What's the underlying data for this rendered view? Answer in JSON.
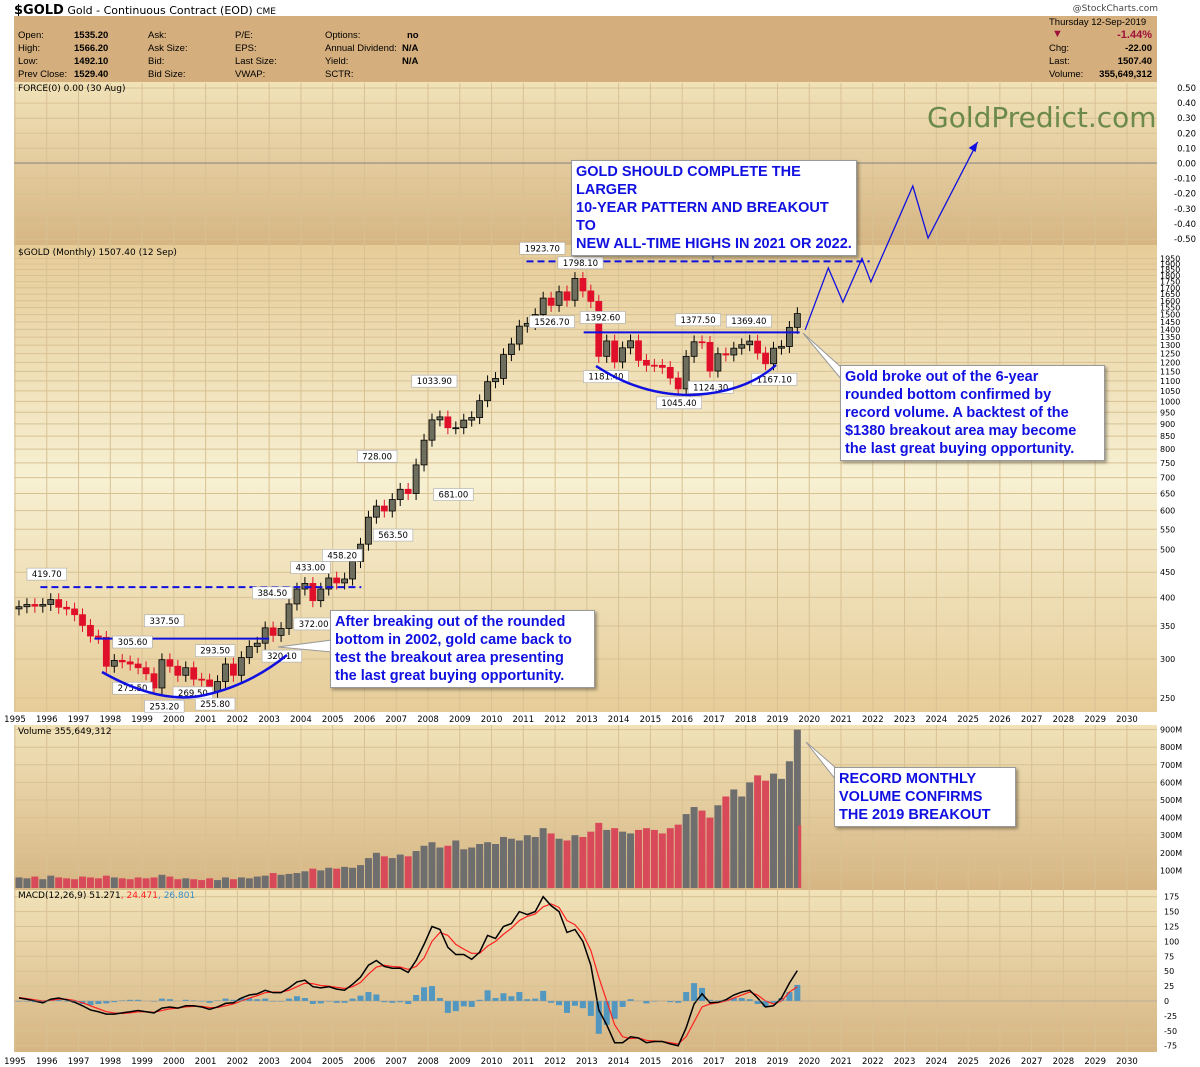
{
  "header": {
    "symbol": "$GOLD",
    "name": "Gold - Continuous Contract (EOD)",
    "exchange": "CME",
    "watermark": "@StockCharts.com",
    "fields": [
      [
        "Open:",
        "1535.20"
      ],
      [
        "High:",
        "1566.20"
      ],
      [
        "Low:",
        "1492.10"
      ],
      [
        "Prev Close:",
        "1529.40"
      ]
    ],
    "fields2": [
      "Ask:",
      "Ask Size:",
      "Bid:",
      "Bid Size:"
    ],
    "fields3": [
      "P/E:",
      "EPS:",
      "Last Size:",
      "VWAP:"
    ],
    "fields4": [
      [
        "Options:",
        "no"
      ],
      [
        "Annual Dividend:",
        "N/A"
      ],
      [
        "Yield:",
        "N/A"
      ],
      [
        "SCTR:",
        ""
      ]
    ],
    "date": "Thursday  12-Sep-2019",
    "change_pct": "-1.44%",
    "chg_label": "Chg:",
    "chg": "-22.00",
    "last_label": "Last:",
    "last": "1507.40",
    "volume_label": "Volume:",
    "volume": "355,649,312",
    "down_color": "#a0103a"
  },
  "brand": "GoldPredict.com",
  "chart_data": {
    "type": "candlestick",
    "price_scale": "log",
    "colors": {
      "up": "#000000",
      "down": "#e0102a",
      "volume_up": "#6e6e6e",
      "volume_down": "#d84a5a",
      "annotation": "#1010e0",
      "macd": "#000000",
      "signal": "#ff2020",
      "histogram": "#3a8fc8"
    },
    "force_label": "FORCE(0) 0.00 (30 Aug)",
    "force_ticks": [
      "0.50",
      "0.40",
      "0.30",
      "0.20",
      "0.10",
      "0.00",
      "-0.10",
      "-0.20",
      "-0.30",
      "-0.40",
      "-0.50"
    ],
    "price_label": "$GOLD (Monthly) 1507.40 (12 Sep)",
    "price_ticks": [
      1950,
      1900,
      1850,
      1800,
      1750,
      1700,
      1650,
      1600,
      1550,
      1500,
      1450,
      1400,
      1350,
      1300,
      1250,
      1200,
      1150,
      1100,
      1050,
      1000,
      950,
      900,
      850,
      800,
      750,
      700,
      650,
      600,
      550,
      500,
      450,
      400,
      350,
      300,
      250
    ],
    "years": [
      1995,
      1996,
      1997,
      1998,
      1999,
      2000,
      2001,
      2002,
      2003,
      2004,
      2005,
      2006,
      2007,
      2008,
      2009,
      2010,
      2011,
      2012,
      2013,
      2014,
      2015,
      2016,
      2017,
      2018,
      2019,
      2020,
      2021,
      2022,
      2023,
      2024,
      2025,
      2026,
      2027,
      2028,
      2029,
      2030
    ],
    "quarterly_close": [
      383,
      387,
      384,
      387,
      396,
      382,
      379,
      369,
      351,
      334,
      332,
      290,
      298,
      296,
      293,
      288,
      280,
      262,
      299,
      290,
      278,
      288,
      273,
      272,
      258,
      270,
      293,
      278,
      302,
      318,
      323,
      347,
      335,
      346,
      388,
      416,
      427,
      394,
      416,
      438,
      428,
      436,
      473,
      513,
      582,
      613,
      599,
      632,
      663,
      650,
      743,
      834,
      917,
      930,
      884,
      884,
      916,
      927,
      1003,
      1096,
      1113,
      1244,
      1307,
      1421,
      1439,
      1500,
      1620,
      1566,
      1668,
      1604,
      1776,
      1675,
      1595,
      1234,
      1326,
      1202,
      1284,
      1327,
      1211,
      1184,
      1183,
      1172,
      1115,
      1060,
      1234,
      1321,
      1317,
      1152,
      1249,
      1242,
      1282,
      1303,
      1325,
      1253,
      1192,
      1282,
      1292,
      1413,
      1507
    ],
    "labels": [
      [
        "419.70",
        1996.0,
        419.7,
        "up"
      ],
      [
        "337.50",
        1999.7,
        337.5,
        "up"
      ],
      [
        "305.60",
        1998.7,
        305.6,
        "up"
      ],
      [
        "275.50",
        1998.7,
        275.5,
        "down"
      ],
      [
        "253.20",
        1999.7,
        253.2,
        "down"
      ],
      [
        "269.50",
        2000.6,
        269.5,
        "down"
      ],
      [
        "293.50",
        2001.3,
        293.5,
        "up"
      ],
      [
        "255.80",
        2001.3,
        255.8,
        "down"
      ],
      [
        "384.50",
        2003.1,
        384.5,
        "up"
      ],
      [
        "320.10",
        2003.4,
        320.1,
        "down"
      ],
      [
        "433.00",
        2004.3,
        433.0,
        "up"
      ],
      [
        "372.00",
        2004.4,
        372.0,
        "down"
      ],
      [
        "458.20",
        2005.3,
        458.2,
        "up"
      ],
      [
        "728.00",
        2006.4,
        728.0,
        "up"
      ],
      [
        "563.50",
        2006.9,
        563.5,
        "down"
      ],
      [
        "1033.90",
        2008.2,
        1033.9,
        "up"
      ],
      [
        "681.00",
        2008.8,
        681.0,
        "down"
      ],
      [
        "1923.70",
        2011.6,
        1923.7,
        "up"
      ],
      [
        "1798.10",
        2012.8,
        1798.1,
        "up"
      ],
      [
        "1526.70",
        2011.9,
        1526.7,
        "down"
      ],
      [
        "1392.60",
        2013.5,
        1392.6,
        "up"
      ],
      [
        "1181.40",
        2013.6,
        1181.4,
        "down"
      ],
      [
        "1377.50",
        2016.5,
        1377.5,
        "up"
      ],
      [
        "1045.40",
        2015.9,
        1045.4,
        "down"
      ],
      [
        "1124.30",
        2016.9,
        1124.3,
        "down"
      ],
      [
        "1369.40",
        2018.1,
        1369.4,
        "up"
      ],
      [
        "1167.10",
        2018.9,
        1167.1,
        "down"
      ]
    ],
    "levels": [
      {
        "price": 419.7,
        "from": 1995.8,
        "to": 2005.9,
        "dashed": true
      },
      {
        "price": 330,
        "from": 1997.5,
        "to": 2003.0,
        "dashed": false
      },
      {
        "price": 1380,
        "from": 2012.9,
        "to": 2019.7,
        "dashed": false
      },
      {
        "price": 1923.7,
        "from": 2011.1,
        "to": 2021.9,
        "dashed": true
      }
    ],
    "projection": [
      [
        2019.87,
        1396
      ],
      [
        2020.6,
        1865
      ],
      [
        2021.06,
        1590
      ],
      [
        2021.66,
        1950
      ],
      [
        2021.94,
        1747
      ],
      [
        2023.26,
        2735
      ],
      [
        2023.74,
        2145
      ],
      [
        2025.3,
        3360
      ]
    ],
    "volume_label": "Volume 355,649,312",
    "volume_ticks": [
      "900M",
      "800M",
      "700M",
      "600M",
      "500M",
      "400M",
      "300M",
      "200M",
      "100M"
    ],
    "volume_quarterly_m": [
      60,
      55,
      65,
      50,
      70,
      60,
      55,
      50,
      65,
      60,
      55,
      70,
      60,
      55,
      50,
      60,
      55,
      60,
      75,
      65,
      50,
      55,
      50,
      45,
      55,
      45,
      60,
      50,
      60,
      55,
      65,
      70,
      85,
      75,
      80,
      85,
      95,
      110,
      100,
      115,
      110,
      120,
      115,
      130,
      170,
      200,
      180,
      170,
      190,
      180,
      210,
      240,
      260,
      230,
      240,
      270,
      220,
      230,
      250,
      260,
      250,
      290,
      280,
      270,
      300,
      290,
      340,
      310,
      280,
      270,
      300,
      290,
      320,
      370,
      330,
      340,
      320,
      310,
      330,
      340,
      330,
      310,
      340,
      360,
      420,
      460,
      440,
      400,
      470,
      520,
      560,
      520,
      600,
      640,
      610,
      650,
      620,
      720,
      900
    ],
    "macd_label": "MACD(12,26,9)",
    "macd_value": "51.271",
    "signal_value": "24.471",
    "hist_value": "26.801",
    "macd_ticks": [
      175,
      150,
      125,
      100,
      75,
      50,
      25,
      0,
      -25,
      -50,
      -75
    ],
    "macd": [
      5,
      3,
      0,
      -3,
      3,
      5,
      2,
      -2,
      -8,
      -15,
      -18,
      -22,
      -22,
      -20,
      -18,
      -16,
      -18,
      -20,
      -12,
      -10,
      -12,
      -8,
      -8,
      -10,
      -14,
      -10,
      -4,
      -3,
      5,
      10,
      12,
      18,
      14,
      14,
      22,
      32,
      35,
      24,
      22,
      24,
      20,
      18,
      28,
      40,
      60,
      68,
      58,
      55,
      55,
      48,
      68,
      95,
      125,
      120,
      90,
      78,
      78,
      70,
      82,
      110,
      105,
      125,
      130,
      150,
      145,
      150,
      175,
      160,
      150,
      115,
      120,
      100,
      60,
      -15,
      -40,
      -70,
      -70,
      -60,
      -62,
      -70,
      -68,
      -68,
      -72,
      -75,
      -45,
      -5,
      12,
      -3,
      -2,
      2,
      10,
      15,
      18,
      5,
      -10,
      -8,
      5,
      30,
      51
    ],
    "signal": [
      6,
      4,
      2,
      0,
      1,
      3,
      3,
      1,
      -3,
      -8,
      -13,
      -18,
      -20,
      -21,
      -20,
      -18,
      -18,
      -19,
      -16,
      -13,
      -12,
      -10,
      -9,
      -9,
      -11,
      -11,
      -8,
      -5,
      0,
      5,
      9,
      14,
      15,
      15,
      18,
      24,
      30,
      29,
      26,
      25,
      23,
      21,
      24,
      31,
      45,
      57,
      60,
      58,
      57,
      53,
      58,
      72,
      100,
      115,
      110,
      95,
      87,
      80,
      80,
      92,
      100,
      112,
      122,
      135,
      142,
      146,
      158,
      163,
      157,
      135,
      128,
      112,
      85,
      40,
      0,
      -40,
      -60,
      -63,
      -62,
      -66,
      -67,
      -68,
      -70,
      -72,
      -60,
      -35,
      -10,
      -5,
      -3,
      0,
      5,
      10,
      15,
      10,
      0,
      -5,
      0,
      15,
      24
    ]
  },
  "annotations": {
    "top": "GOLD SHOULD COMPLETE THE LARGER\n10-YEAR PATTERN AND BREAKOUT TO\nNEW ALL-TIME HIGHS IN 2021 OR 2022.",
    "right": "Gold broke out of the 6-year\nrounded bottom confirmed by\nrecord volume. A backtest of the\n$1380 breakout area may become\nthe last great buying opportunity.",
    "left": "After breaking out of the rounded\nbottom in 2002, gold came back to\ntest the breakout area presenting\nthe last great buying opportunity.",
    "volume": "RECORD MONTHLY\nVOLUME CONFIRMS\nTHE 2019 BREAKOUT"
  }
}
